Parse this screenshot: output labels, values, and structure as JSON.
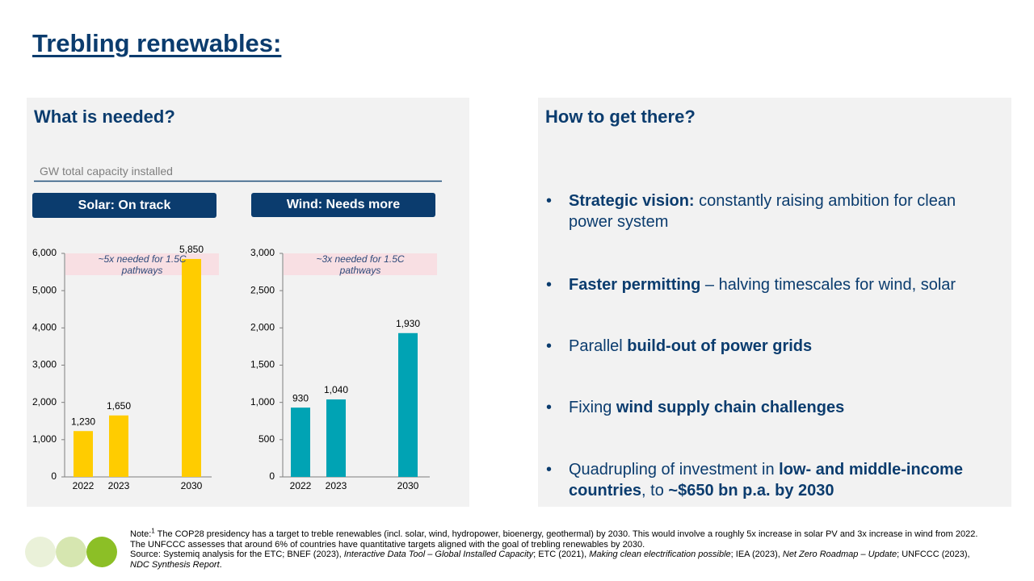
{
  "title": "Trebling renewables:",
  "left_panel": {
    "heading": "What is needed?",
    "unit_label": "GW total capacity installed"
  },
  "right_panel": {
    "heading": "How to get there?",
    "bullets": [
      [
        {
          "text": "Strategic vision:",
          "bold": true
        },
        {
          "text": " constantly raising ambition for clean power system"
        }
      ],
      [
        {
          "text": "Faster permitting",
          "bold": true
        },
        {
          "text": " – halving timescales for wind, solar"
        }
      ],
      [
        {
          "text": "Parallel "
        },
        {
          "text": "build-out of power grids",
          "bold": true
        }
      ],
      [
        {
          "text": "Fixing "
        },
        {
          "text": "wind supply chain challenges",
          "bold": true
        }
      ],
      [
        {
          "text": "Quadrupling of investment in "
        },
        {
          "text": "low- and middle-income countries",
          "bold": true
        },
        {
          "text": ", to "
        },
        {
          "text": "~$650 bn p.a. by 2030",
          "bold": true
        }
      ]
    ]
  },
  "chart_data": [
    {
      "type": "bar",
      "title": "Solar: On track",
      "categories": [
        "2022",
        "2023",
        "2030"
      ],
      "values": [
        1230,
        1650,
        5850
      ],
      "value_labels": [
        "1,230",
        "1,650",
        "5,850"
      ],
      "color": "#ffcc00",
      "ylim": [
        0,
        6000
      ],
      "yticks": [
        0,
        {
          "value": 1000,
          "label": "1,000"
        },
        {
          "value": 2000,
          "label": "2,000"
        },
        {
          "value": 3000,
          "label": "3,000"
        },
        {
          "value": 4000,
          "label": "4,000"
        },
        {
          "value": 5000,
          "label": "5,000"
        },
        {
          "value": 6000,
          "label": "6,000"
        }
      ],
      "annotation": "~5x needed for 1.5C pathways"
    },
    {
      "type": "bar",
      "title": "Wind: Needs more",
      "categories": [
        "2022",
        "2023",
        "2030"
      ],
      "values": [
        930,
        1040,
        1930
      ],
      "value_labels": [
        "930",
        "1,040",
        "1,930"
      ],
      "color": "#00a3b4",
      "ylim": [
        0,
        3000
      ],
      "yticks": [
        0,
        500,
        {
          "value": 1000,
          "label": "1,000"
        },
        {
          "value": 1500,
          "label": "1,500"
        },
        {
          "value": 2000,
          "label": "2,000"
        },
        {
          "value": 2500,
          "label": "2,500"
        },
        {
          "value": 3000,
          "label": "3,000"
        }
      ],
      "annotation": "~3x needed for 1.5C pathways"
    }
  ],
  "footnote": {
    "note": [
      {
        "text": "Note:"
      },
      {
        "text": "1",
        "sup": true
      },
      {
        "text": " The COP28 presidency has a target to treble renewables (incl. solar, wind, hydropower, bioenergy, geothermal) by 2030. This would involve a roughly 5x increase in solar PV and 3x increase in wind from 2022. The UNFCCC assesses that around 6% of countries have quantitative targets aligned with the goal of trebling renewables by 2030."
      }
    ],
    "source": [
      {
        "text": "Source: Systemiq analysis for the ETC; BNEF (2023), "
      },
      {
        "text": "Interactive Data Tool – Global Installed Capacity",
        "italic": true
      },
      {
        "text": "; ETC (2021), "
      },
      {
        "text": "Making clean electrification possible",
        "italic": true
      },
      {
        "text": "; IEA (2023), "
      },
      {
        "text": "Net Zero Roadmap – Update",
        "italic": true
      },
      {
        "text": "; UNFCCC (2023), "
      },
      {
        "text": "NDC Synthesis Report",
        "italic": true
      },
      {
        "text": "."
      }
    ]
  }
}
